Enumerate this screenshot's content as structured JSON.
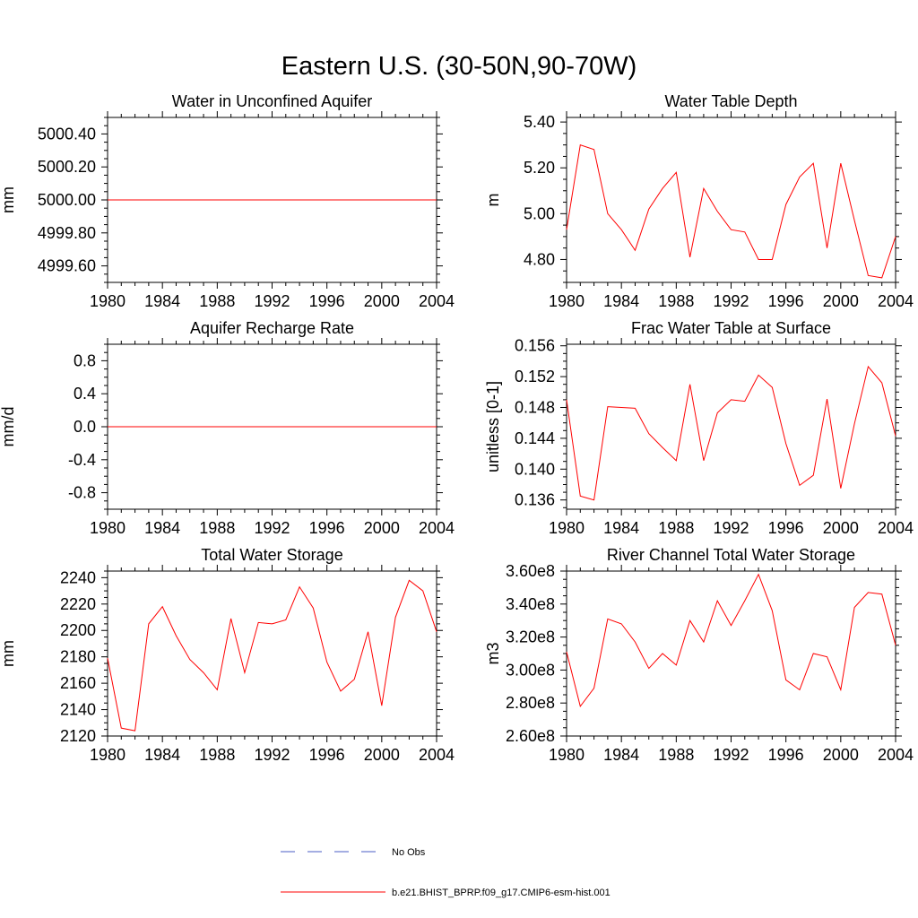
{
  "figure": {
    "title": "Eastern U.S. (30-50N,90-70W)"
  },
  "legend": {
    "entries": [
      {
        "label": "No Obs",
        "color": "#4a5cc4",
        "dash": true
      },
      {
        "label": "b.e21.BHIST_BPRP.f09_g17.CMIP6-esm-hist.001",
        "color": "#ff0000",
        "dash": false
      }
    ]
  },
  "chart_data": [
    {
      "type": "line",
      "title": "Water in Unconfined Aquifer",
      "ylabel": "mm",
      "xlim": [
        1980,
        2004
      ],
      "ylim": [
        4999.5,
        5000.5
      ],
      "xticks": [
        1980,
        1984,
        1988,
        1992,
        1996,
        2000,
        2004
      ],
      "xticklabels": [
        "1980",
        "1984",
        "1988",
        "1992",
        "1996",
        "2000",
        "2004"
      ],
      "yticks": [
        4999.6,
        4999.8,
        5000.0,
        5000.2,
        5000.4
      ],
      "yticklabels": [
        "4999.60",
        "4999.80",
        "5000.00",
        "5000.20",
        "5000.40"
      ],
      "x": [
        1980,
        1981,
        1982,
        1983,
        1984,
        1985,
        1986,
        1987,
        1988,
        1989,
        1990,
        1991,
        1992,
        1993,
        1994,
        1995,
        1996,
        1997,
        1998,
        1999,
        2000,
        2001,
        2002,
        2003,
        2004
      ],
      "series": [
        {
          "color": "#ff0000",
          "values": [
            5000,
            5000,
            5000,
            5000,
            5000,
            5000,
            5000,
            5000,
            5000,
            5000,
            5000,
            5000,
            5000,
            5000,
            5000,
            5000,
            5000,
            5000,
            5000,
            5000,
            5000,
            5000,
            5000,
            5000,
            5000
          ]
        }
      ]
    },
    {
      "type": "line",
      "title": "Water Table Depth",
      "ylabel": "m",
      "xlim": [
        1980,
        2004
      ],
      "ylim": [
        4.7,
        5.42
      ],
      "xticks": [
        1980,
        1984,
        1988,
        1992,
        1996,
        2000,
        2004
      ],
      "xticklabels": [
        "1980",
        "1984",
        "1988",
        "1992",
        "1996",
        "2000",
        "2004"
      ],
      "yticks": [
        4.8,
        5.0,
        5.2,
        5.4
      ],
      "yticklabels": [
        "4.80",
        "5.00",
        "5.20",
        "5.40"
      ],
      "x": [
        1980,
        1981,
        1982,
        1983,
        1984,
        1985,
        1986,
        1987,
        1988,
        1989,
        1990,
        1991,
        1992,
        1993,
        1994,
        1995,
        1996,
        1997,
        1998,
        1999,
        2000,
        2001,
        2002,
        2003,
        2004
      ],
      "series": [
        {
          "color": "#ff0000",
          "values": [
            4.93,
            5.3,
            5.28,
            5.0,
            4.93,
            4.84,
            5.02,
            5.11,
            5.18,
            4.81,
            5.11,
            5.01,
            4.93,
            4.92,
            4.8,
            4.8,
            5.04,
            5.16,
            5.22,
            4.85,
            5.22,
            4.97,
            4.73,
            4.72,
            4.9
          ]
        }
      ]
    },
    {
      "type": "line",
      "title": "Aquifer Recharge Rate",
      "ylabel": "mm/d",
      "xlim": [
        1980,
        2004
      ],
      "ylim": [
        -1.0,
        1.0
      ],
      "xticks": [
        1980,
        1984,
        1988,
        1992,
        1996,
        2000,
        2004
      ],
      "xticklabels": [
        "1980",
        "1984",
        "1988",
        "1992",
        "1996",
        "2000",
        "2004"
      ],
      "yticks": [
        -0.8,
        -0.4,
        0.0,
        0.4,
        0.8
      ],
      "yticklabels": [
        "-0.8",
        "-0.4",
        "0.0",
        "0.4",
        "0.8"
      ],
      "x": [
        1980,
        1981,
        1982,
        1983,
        1984,
        1985,
        1986,
        1987,
        1988,
        1989,
        1990,
        1991,
        1992,
        1993,
        1994,
        1995,
        1996,
        1997,
        1998,
        1999,
        2000,
        2001,
        2002,
        2003,
        2004
      ],
      "series": [
        {
          "color": "#ff0000",
          "values": [
            0,
            0,
            0,
            0,
            0,
            0,
            0,
            0,
            0,
            0,
            0,
            0,
            0,
            0,
            0,
            0,
            0,
            0,
            0,
            0,
            0,
            0,
            0,
            0,
            0
          ]
        }
      ]
    },
    {
      "type": "line",
      "title": "Frac Water Table at Surface",
      "ylabel": "unitless [0-1]",
      "xlim": [
        1980,
        2004
      ],
      "ylim": [
        0.1348,
        0.1562
      ],
      "xticks": [
        1980,
        1984,
        1988,
        1992,
        1996,
        2000,
        2004
      ],
      "xticklabels": [
        "1980",
        "1984",
        "1988",
        "1992",
        "1996",
        "2000",
        "2004"
      ],
      "yticks": [
        0.136,
        0.14,
        0.144,
        0.148,
        0.152,
        0.156
      ],
      "yticklabels": [
        "0.136",
        "0.140",
        "0.144",
        "0.148",
        "0.152",
        "0.156"
      ],
      "x": [
        1980,
        1981,
        1982,
        1983,
        1984,
        1985,
        1986,
        1987,
        1988,
        1989,
        1990,
        1991,
        1992,
        1993,
        1994,
        1995,
        1996,
        1997,
        1998,
        1999,
        2000,
        2001,
        2002,
        2003,
        2004
      ],
      "series": [
        {
          "color": "#ff0000",
          "values": [
            0.149,
            0.1365,
            0.136,
            0.1481,
            0.148,
            0.1479,
            0.1446,
            0.1428,
            0.1411,
            0.151,
            0.1411,
            0.1473,
            0.149,
            0.1488,
            0.1522,
            0.1506,
            0.1433,
            0.1379,
            0.1392,
            0.1491,
            0.1375,
            0.1459,
            0.1533,
            0.1512,
            0.1443
          ]
        }
      ]
    },
    {
      "type": "line",
      "title": "Total Water Storage",
      "ylabel": "mm",
      "xlim": [
        1980,
        2004
      ],
      "ylim": [
        2120,
        2245
      ],
      "xticks": [
        1980,
        1984,
        1988,
        1992,
        1996,
        2000,
        2004
      ],
      "xticklabels": [
        "1980",
        "1984",
        "1988",
        "1992",
        "1996",
        "2000",
        "2004"
      ],
      "yticks": [
        2120,
        2140,
        2160,
        2180,
        2200,
        2220,
        2240
      ],
      "yticklabels": [
        "2120",
        "2140",
        "2160",
        "2180",
        "2200",
        "2220",
        "2240"
      ],
      "x": [
        1980,
        1981,
        1982,
        1983,
        1984,
        1985,
        1986,
        1987,
        1988,
        1989,
        1990,
        1991,
        1992,
        1993,
        1994,
        1995,
        1996,
        1997,
        1998,
        1999,
        2000,
        2001,
        2002,
        2003,
        2004
      ],
      "series": [
        {
          "color": "#ff0000",
          "values": [
            2179,
            2126,
            2124,
            2205,
            2218,
            2196,
            2178,
            2168,
            2155,
            2209,
            2168,
            2206,
            2205,
            2208,
            2233,
            2217,
            2176,
            2154,
            2163,
            2199,
            2143,
            2210,
            2238,
            2230,
            2199
          ]
        }
      ]
    },
    {
      "type": "line",
      "title": "River Channel Total Water Storage",
      "ylabel": "m3",
      "xlim": [
        1980,
        2004
      ],
      "ylim": [
        260000000,
        360000000
      ],
      "xticks": [
        1980,
        1984,
        1988,
        1992,
        1996,
        2000,
        2004
      ],
      "xticklabels": [
        "1980",
        "1984",
        "1988",
        "1992",
        "1996",
        "2000",
        "2004"
      ],
      "yticks": [
        260000000,
        280000000,
        300000000,
        320000000,
        340000000,
        360000000
      ],
      "yticklabels": [
        "2.60e8",
        "2.80e8",
        "3.00e8",
        "3.20e8",
        "3.40e8",
        "3.60e8"
      ],
      "x": [
        1980,
        1981,
        1982,
        1983,
        1984,
        1985,
        1986,
        1987,
        1988,
        1989,
        1990,
        1991,
        1992,
        1993,
        1994,
        1995,
        1996,
        1997,
        1998,
        1999,
        2000,
        2001,
        2002,
        2003,
        2004
      ],
      "series": [
        {
          "color": "#ff0000",
          "values": [
            311000000,
            278000000,
            289000000,
            331000000,
            328000000,
            317000000,
            301000000,
            310000000,
            303000000,
            330000000,
            317000000,
            342000000,
            327000000,
            342000000,
            358000000,
            336000000,
            294000000,
            288000000,
            310000000,
            308000000,
            288000000,
            338000000,
            347000000,
            346000000,
            315000000
          ]
        }
      ]
    }
  ]
}
